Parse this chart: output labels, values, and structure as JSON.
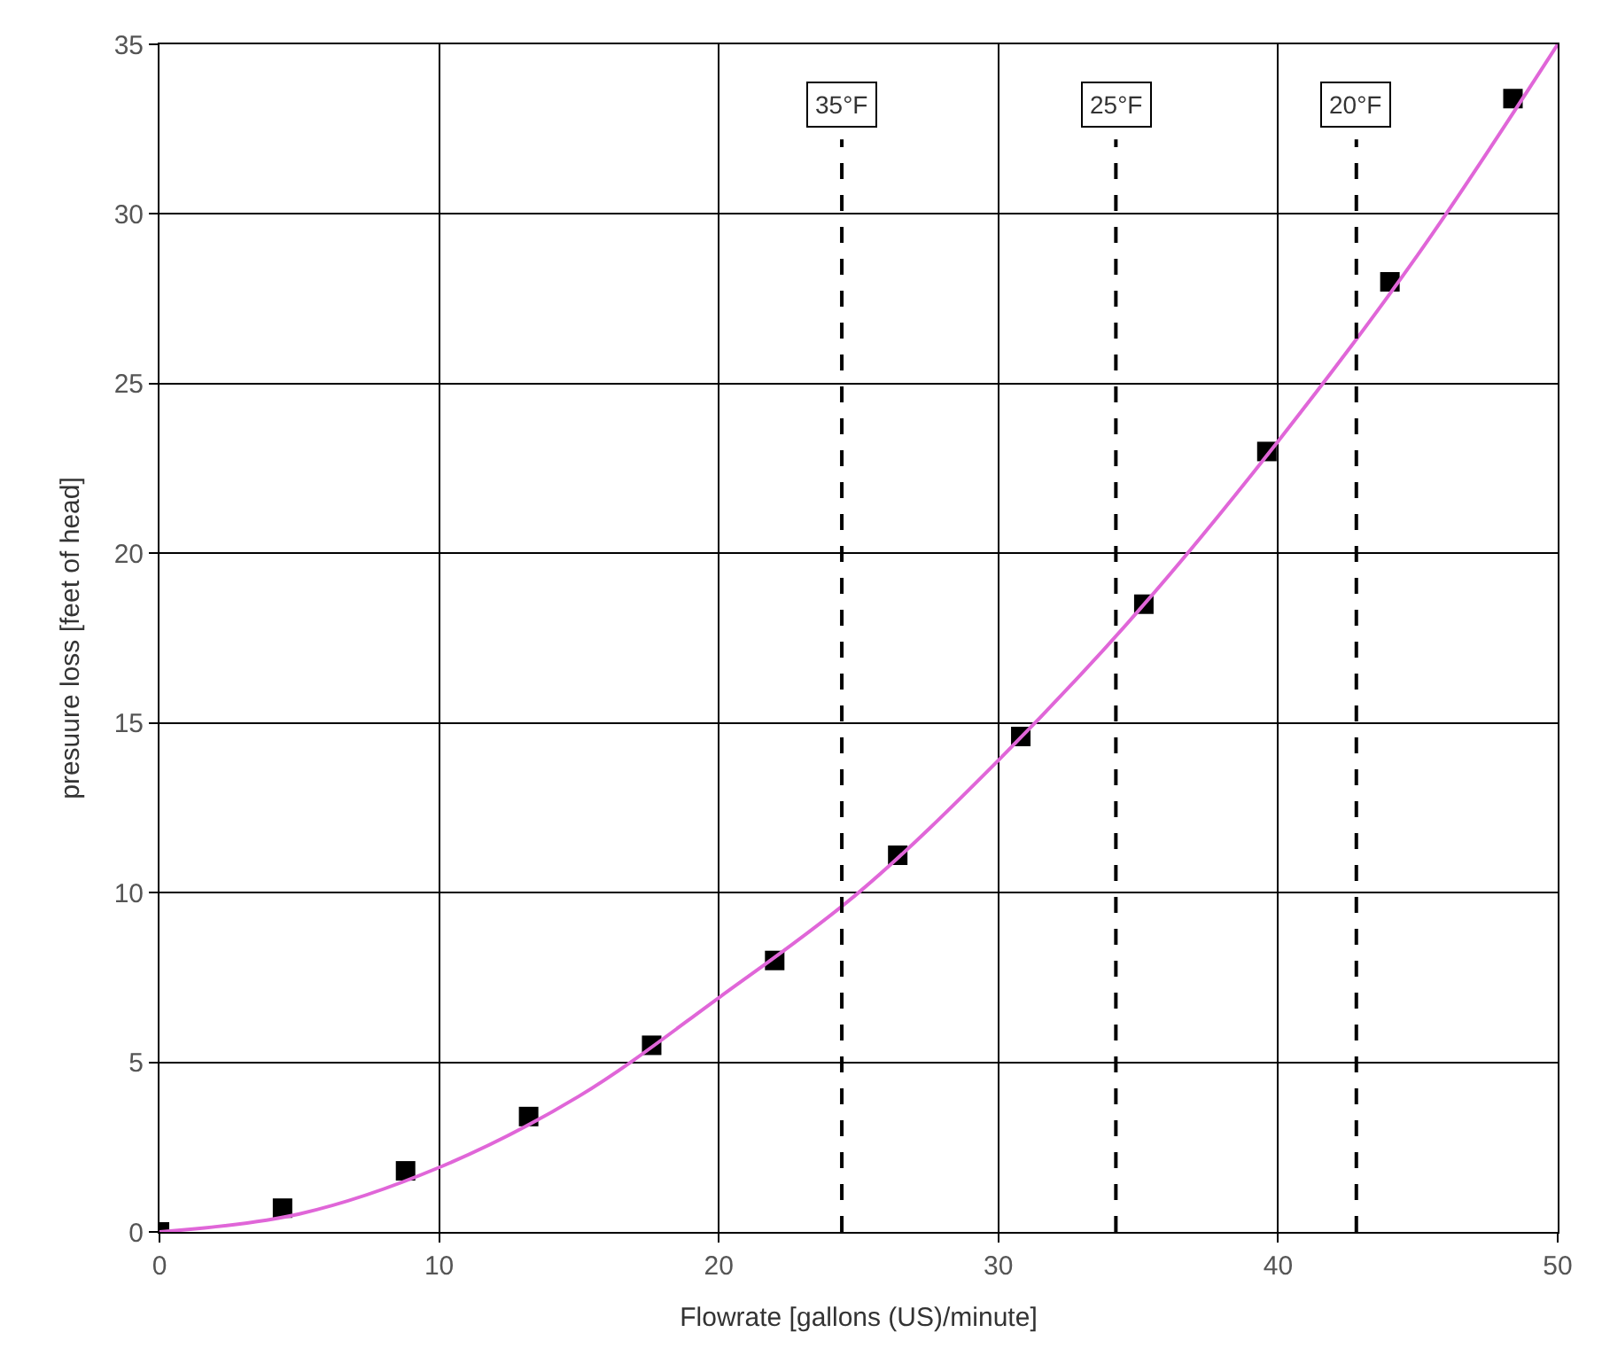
{
  "chart_data": {
    "type": "scatter",
    "xlabel": "Flowrate [gallons (US)/minute]",
    "ylabel": "presuure loss [feet of head]",
    "xlim": [
      0,
      50
    ],
    "xticks": [
      0,
      10,
      20,
      30,
      40,
      50
    ],
    "ylim": [
      0,
      35
    ],
    "yticks": [
      0,
      5,
      10,
      15,
      20,
      25,
      30,
      35
    ],
    "grid": true,
    "marker": "square",
    "x": [
      0,
      4.4,
      8.8,
      13.2,
      17.6,
      22,
      26.4,
      30.8,
      35.2,
      39.6,
      44,
      48.4
    ],
    "series": [
      {
        "color": "#000000",
        "values": [
          0,
          0.7,
          1.8,
          3.4,
          5.5,
          8.0,
          11.1,
          14.6,
          18.5,
          23.0,
          28.0,
          33.4
        ]
      },
      {
        "type": "line",
        "color": "#e066d8",
        "marker": "none",
        "line_style": "solid",
        "x": [
          0,
          5,
          10,
          15,
          20,
          25,
          30,
          35,
          40,
          45,
          50
        ],
        "values": [
          0,
          0.53,
          1.9,
          4.0,
          6.9,
          10.0,
          13.9,
          18.3,
          23.3,
          28.8,
          35
        ]
      }
    ],
    "ref_lines": [
      {
        "axis": "x",
        "value": 24.4,
        "label": "35°F",
        "color": "#000000",
        "line_style": "dashed"
      },
      {
        "axis": "x",
        "value": 34.2,
        "label": "25°F",
        "color": "#000000",
        "line_style": "dashed"
      },
      {
        "axis": "x",
        "value": 42.8,
        "label": "20°F",
        "color": "#000000",
        "line_style": "dashed"
      }
    ]
  }
}
